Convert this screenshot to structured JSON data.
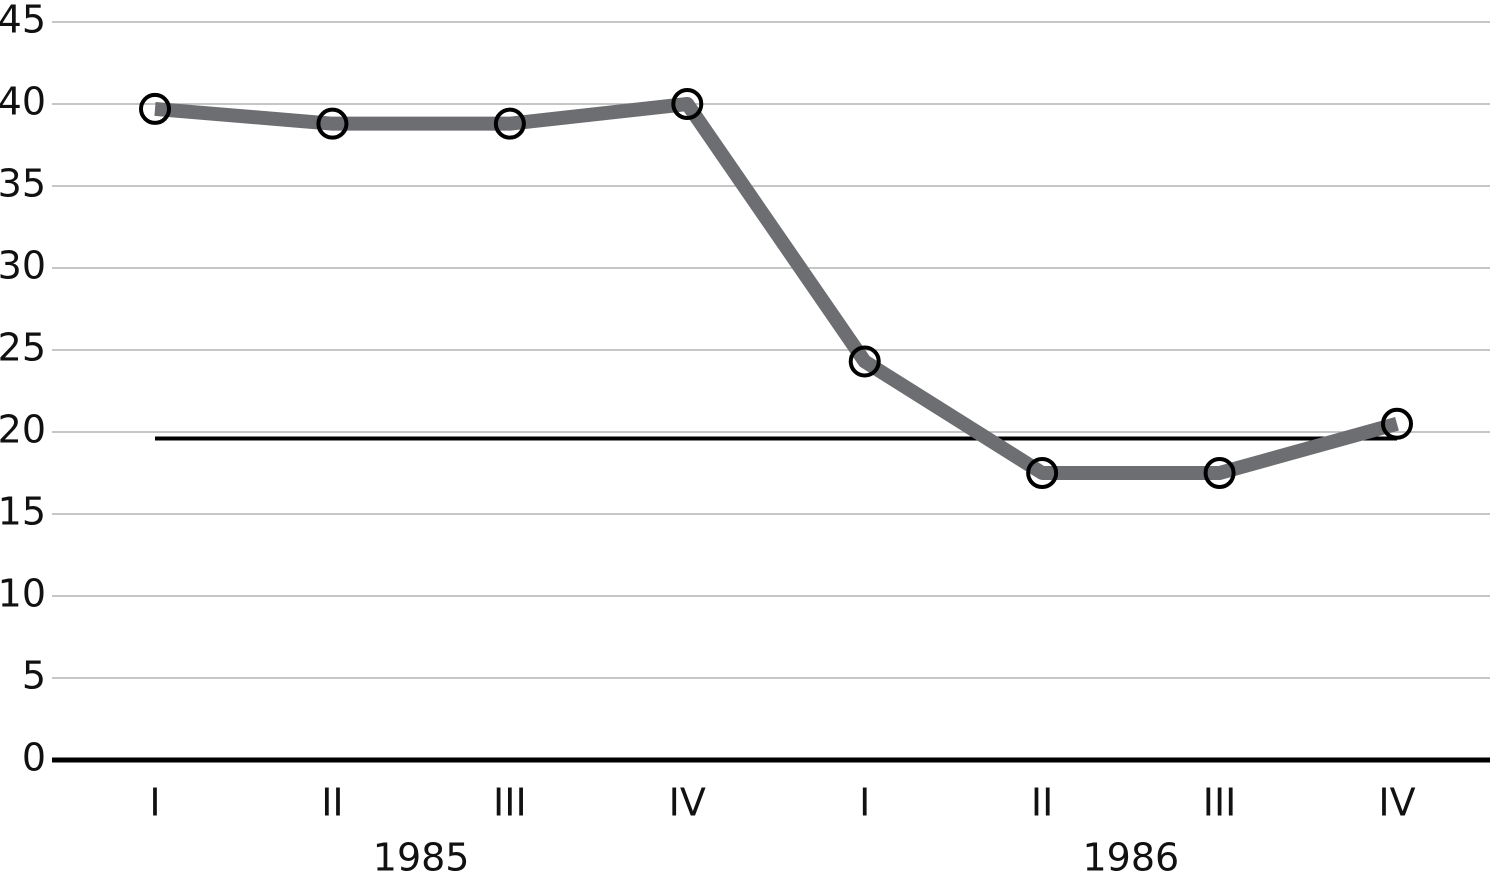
{
  "chart_data": {
    "type": "line",
    "categories": [
      "I",
      "II",
      "III",
      "IV",
      "I",
      "II",
      "III",
      "IV"
    ],
    "x_groups": [
      "1985",
      "1986"
    ],
    "series": [
      {
        "color": "#6d6e71",
        "values": [
          39.7,
          38.8,
          38.8,
          40.0,
          24.3,
          17.5,
          17.5,
          20.5
        ]
      }
    ],
    "reference_line": {
      "value": 19.6,
      "color": "#000000"
    },
    "ylim": [
      0,
      45
    ],
    "yticks": [
      0,
      5,
      10,
      15,
      20,
      25,
      30,
      35,
      40,
      45
    ],
    "grid": true
  }
}
